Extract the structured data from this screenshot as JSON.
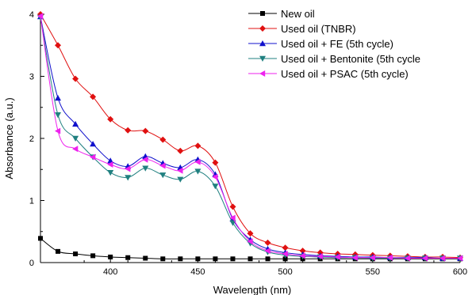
{
  "chart_data": {
    "type": "line",
    "xlabel": "Wavelength (nm)",
    "ylabel": "Absorbance (a.u.)",
    "xlim": [
      360,
      600
    ],
    "ylim": [
      0,
      4
    ],
    "x_ticks": [
      400,
      450,
      500,
      550,
      600
    ],
    "y_ticks": [
      0,
      1,
      2,
      3,
      4
    ],
    "grid": false,
    "legend_position": "top-right",
    "x": [
      360,
      370,
      380,
      390,
      400,
      410,
      420,
      430,
      440,
      450,
      460,
      470,
      480,
      490,
      500,
      510,
      520,
      530,
      540,
      550,
      560,
      570,
      580,
      590,
      600
    ],
    "series": [
      {
        "name": "New oil",
        "color": "#000000",
        "marker": "square",
        "values": [
          0.39,
          0.18,
          0.14,
          0.11,
          0.09,
          0.08,
          0.07,
          0.06,
          0.06,
          0.06,
          0.06,
          0.06,
          0.06,
          0.06,
          0.06,
          0.06,
          0.06,
          0.06,
          0.06,
          0.06,
          0.06,
          0.06,
          0.06,
          0.06,
          0.06
        ]
      },
      {
        "name": "Used oil (TNBR)",
        "color": "#e01010",
        "marker": "diamond",
        "values": [
          4.0,
          3.5,
          2.96,
          2.67,
          2.31,
          2.13,
          2.12,
          1.98,
          1.8,
          1.88,
          1.61,
          0.9,
          0.47,
          0.32,
          0.24,
          0.19,
          0.16,
          0.14,
          0.13,
          0.12,
          0.11,
          0.1,
          0.09,
          0.09,
          0.08
        ]
      },
      {
        "name": "Used oil + FE (5th cycle)",
        "color": "#1010cc",
        "marker": "triangle-up",
        "values": [
          3.96,
          2.65,
          2.23,
          1.91,
          1.64,
          1.55,
          1.71,
          1.6,
          1.53,
          1.66,
          1.42,
          0.7,
          0.37,
          0.22,
          0.16,
          0.13,
          0.11,
          0.1,
          0.09,
          0.09,
          0.08,
          0.08,
          0.08,
          0.07,
          0.07
        ]
      },
      {
        "name": "Used oil + Bentonite (5th cycle",
        "color": "#208080",
        "marker": "triangle-down",
        "values": [
          3.95,
          2.38,
          2.0,
          1.7,
          1.45,
          1.37,
          1.52,
          1.41,
          1.34,
          1.47,
          1.23,
          0.64,
          0.31,
          0.17,
          0.12,
          0.1,
          0.09,
          0.08,
          0.08,
          0.07,
          0.07,
          0.07,
          0.07,
          0.07,
          0.07
        ]
      },
      {
        "name": "Used oil + PSAC (5th cycle)",
        "color": "#ee22ee",
        "marker": "triangle-left",
        "values": [
          3.97,
          2.12,
          1.83,
          1.7,
          1.58,
          1.51,
          1.66,
          1.56,
          1.48,
          1.62,
          1.38,
          0.72,
          0.34,
          0.19,
          0.14,
          0.11,
          0.1,
          0.09,
          0.08,
          0.08,
          0.08,
          0.07,
          0.07,
          0.07,
          0.07
        ]
      }
    ]
  }
}
